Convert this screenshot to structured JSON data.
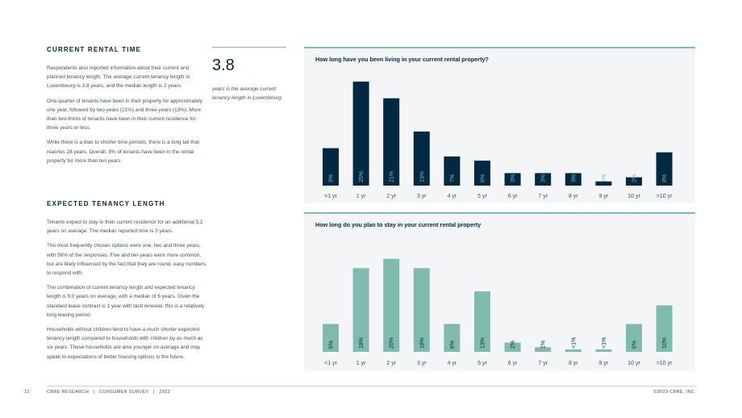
{
  "left": {
    "section1": {
      "heading": "CURRENT RENTAL TIME",
      "paragraphs": [
        "Respondents also reported information about their current and planned tenancy length. The average current tenancy length in Luxembourg is 3.8 years, and the median length is 2 years.",
        "One-quarter of tenants have been in their property for approximately one year, followed by two years (21%) and three years (13%). More than two-thirds of tenants have been in their current residence for three years or less.",
        "While there is a bias to shorter time periods, there is a long tail that reaches 28 years. Overall, 8% of tenants have been in the rental property for more than ten years."
      ]
    },
    "section2": {
      "heading": "EXPECTED TENANCY LENGTH",
      "paragraphs": [
        "Tenants expect to stay in their current residence for an additional 5.2 years on average. The median reported time is 3 years.",
        "The most frequently chosen options were one, two and three years, with 56% of the responses. Five and ten years were more common, but are likely influenced by the fact that they are round, easy numbers to respond with.",
        "The combination of current tenancy length and expected tenancy length is 9.0 years on average, with a median of 6 years. Given the standard lease contract is 1 year with tacit renewal, this is a relatively long leasing period.",
        "Households without children tend to have a much shorter expected tenancy length compared to households with children by as much as six years. These households are also younger on average and may speak to expectations of better housing options in the future."
      ]
    }
  },
  "stat": {
    "value": "3.8",
    "caption": "years is the average current tenancy length in Luxembourg."
  },
  "chart_data": [
    {
      "type": "bar",
      "title": "How long have you been living in your current rental property?",
      "categories": [
        "<1 yr",
        "1 yr",
        "2 yr",
        "3 yr",
        "4 yr",
        "5 yr",
        "6 yr",
        "7 yr",
        "8 yr",
        "9 yr",
        "10 yr",
        ">10 yr"
      ],
      "values": [
        9,
        25,
        21,
        13,
        7,
        6,
        3,
        3,
        3,
        1,
        2,
        8
      ],
      "data_labels": [
        "9%",
        "25%",
        "21%",
        "13%",
        "7%",
        "6%",
        "3%",
        "3%",
        "3%",
        "1%",
        "2%",
        "8%"
      ],
      "color": "#032842",
      "label_color": "#80bbad",
      "ylim": [
        0,
        26
      ]
    },
    {
      "type": "bar",
      "title": "How long do you plan to stay in your current rental property",
      "categories": [
        "<1 yr",
        "1 yr",
        "2 yr",
        "3 yr",
        "4 yr",
        "5 yr",
        "6 yr",
        "7 yr",
        "8 yr",
        "9 yr",
        "10 yr",
        ">10 yr"
      ],
      "values": [
        6,
        18,
        20,
        18,
        6,
        13,
        2,
        1,
        0.5,
        0.5,
        6,
        10
      ],
      "data_labels": [
        "6%",
        "18%",
        "20%",
        "18%",
        "6%",
        "13%",
        "2%",
        "1%",
        "<1%",
        "<1%",
        "6%",
        "10%"
      ],
      "color": "#80bbad",
      "label_color": "#032842",
      "ylim": [
        0,
        21
      ]
    }
  ],
  "footer": {
    "page_number": "12",
    "publication": "CBRE RESEARCH   |   CONSUMER SURVEY   |   2023",
    "copyright": "©2023 CBRE, INC."
  }
}
